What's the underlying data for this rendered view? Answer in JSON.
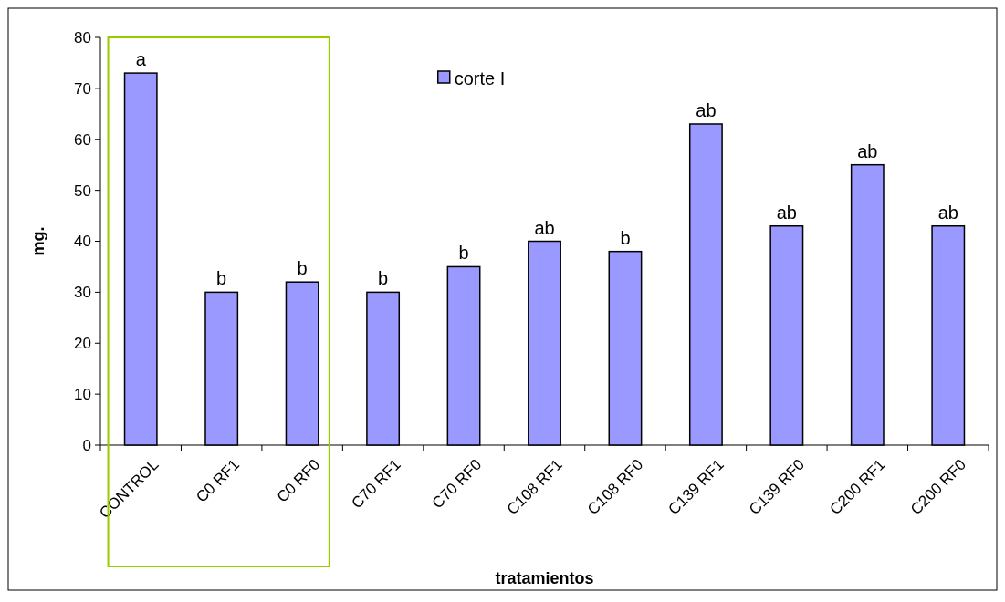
{
  "chart_data": {
    "type": "bar",
    "xlabel": "tratamientos",
    "ylabel": "mg.",
    "categories": [
      "CONTROL",
      "C0 RF1",
      "C0 RF0",
      "C70 RF1",
      "C70 RF0",
      "C108 RF1",
      "C108 RF0",
      "C139 RF1",
      "C139 RF0",
      "C200 RF1",
      "C200 RF0"
    ],
    "series": [
      {
        "name": "corte I",
        "color": "#9999ff",
        "values": [
          73,
          30,
          32,
          30,
          35,
          40,
          38,
          63,
          43,
          55,
          43
        ],
        "value_labels": [
          "a",
          "b",
          "b",
          "b",
          "b",
          "ab",
          "b",
          "ab",
          "ab",
          "ab",
          "ab"
        ]
      }
    ],
    "ylim": [
      0,
      80
    ],
    "yticks": [
      0,
      10,
      20,
      30,
      40,
      50,
      60,
      70,
      80
    ],
    "grid": false,
    "legend": "top"
  }
}
